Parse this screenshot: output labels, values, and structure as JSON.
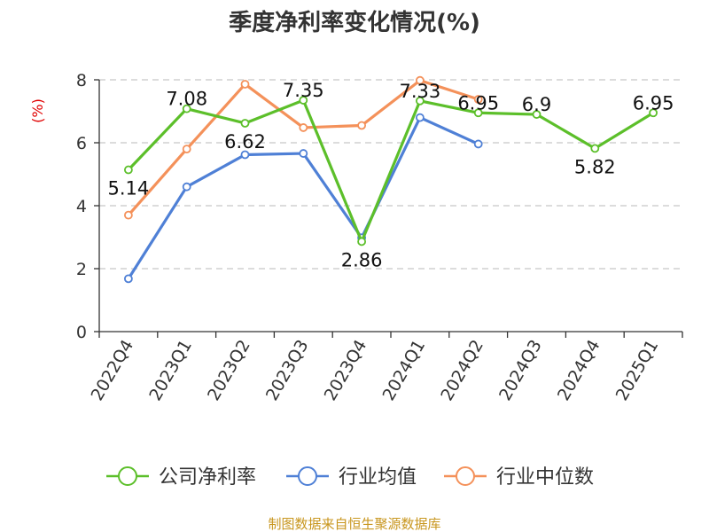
{
  "chart_data": {
    "type": "line",
    "title": "季度净利率变化情况(%)",
    "ylabel": "(%)",
    "ylim": [
      0,
      8
    ],
    "yticks": [
      0,
      2,
      4,
      6,
      8
    ],
    "categories": [
      "2022Q4",
      "2023Q1",
      "2023Q2",
      "2023Q3",
      "2023Q4",
      "2024Q1",
      "2024Q2",
      "2024Q3",
      "2024Q4",
      "2025Q1"
    ],
    "series": [
      {
        "name": "公司净利率",
        "color": "#5cbf2a",
        "values": [
          5.14,
          7.08,
          6.62,
          7.35,
          2.86,
          7.33,
          6.95,
          6.9,
          5.82,
          6.95
        ],
        "labels": [
          "5.14",
          "7.08",
          "6.62",
          "7.35",
          "2.86",
          "7.33",
          "6.95",
          "6.9",
          "5.82",
          "6.95"
        ]
      },
      {
        "name": "行业均值",
        "color": "#4f80d6",
        "values": [
          1.68,
          4.6,
          5.62,
          5.66,
          2.98,
          6.8,
          5.96,
          null,
          null,
          null
        ]
      },
      {
        "name": "行业中位数",
        "color": "#f4915a",
        "values": [
          3.7,
          5.8,
          7.86,
          6.48,
          6.55,
          7.98,
          7.38,
          null,
          null,
          null
        ]
      }
    ],
    "grid": true,
    "legend_position": "bottom",
    "source": "制图数据来自恒生聚源数据库"
  }
}
